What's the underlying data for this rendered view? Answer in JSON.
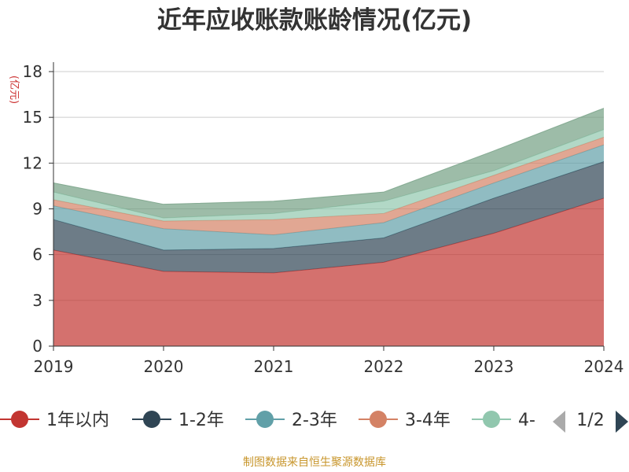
{
  "chart_data": {
    "type": "area",
    "stacked": true,
    "title": "近年应收账款账龄情况(亿元)",
    "ylabel": "(亿元)",
    "xlabel": "",
    "x": [
      "2019",
      "2020",
      "2021",
      "2022",
      "2023",
      "2024"
    ],
    "ylim": [
      0,
      18
    ],
    "yticks": [
      0,
      3,
      6,
      9,
      12,
      15,
      18
    ],
    "grid": true,
    "legend_position": "bottom",
    "series": [
      {
        "name": "1年以内",
        "color": "#c23531",
        "values": [
          6.3,
          4.9,
          4.8,
          5.5,
          7.4,
          9.7
        ]
      },
      {
        "name": "1-2年",
        "color": "#2f4554",
        "values": [
          2.0,
          1.4,
          1.6,
          1.6,
          2.3,
          2.4
        ]
      },
      {
        "name": "2-3年",
        "color": "#61a0a8",
        "values": [
          0.9,
          1.4,
          0.9,
          1.0,
          1.0,
          1.1
        ]
      },
      {
        "name": "3-4年",
        "color": "#d48265",
        "values": [
          0.4,
          0.5,
          1.0,
          0.6,
          0.5,
          0.5
        ]
      },
      {
        "name": "4-",
        "color": "#91c7ae",
        "values": [
          0.5,
          0.2,
          0.4,
          0.8,
          0.3,
          0.5
        ]
      },
      {
        "color": "#749f83",
        "values": [
          0.6,
          0.9,
          0.8,
          0.6,
          1.3,
          1.4
        ]
      }
    ],
    "legend": {
      "visible_items": [
        "1年以内",
        "1-2年",
        "2-3年",
        "3-4年",
        "4-"
      ],
      "page": "1/2"
    }
  },
  "source": "制图数据来自恒生聚源数据库",
  "icons": {
    "legend_prev": "triangle-left-icon",
    "legend_next": "triangle-right-icon"
  }
}
